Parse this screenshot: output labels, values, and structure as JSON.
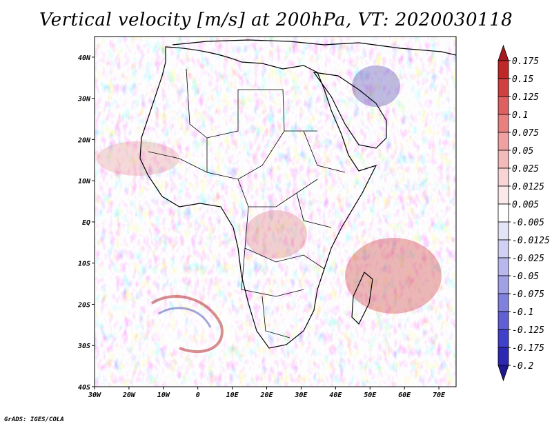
{
  "title": "Vertical velocity [m/s] at 200hPa, VT: 2020030118",
  "footer": "GrADS: IGES/COLA",
  "map": {
    "region": "Africa",
    "lon_range": [
      -30,
      75
    ],
    "lat_range": [
      -40,
      45
    ],
    "x_ticks": [
      "30W",
      "20W",
      "10W",
      "0",
      "10E",
      "20E",
      "30E",
      "40E",
      "50E",
      "60E",
      "70E"
    ],
    "y_ticks": [
      "40N",
      "30N",
      "20N",
      "10N",
      "EQ",
      "10S",
      "20S",
      "30S",
      "40S"
    ],
    "colors": {
      "up_dark": "#a01820",
      "up_light": "#f0b8b8",
      "neutral": "#ffffff",
      "down_light": "#c0c0f0",
      "down_dark": "#2018a0"
    }
  },
  "colorbar": {
    "labels": [
      "0.175",
      "0.15",
      "0.125",
      "0.1",
      "0.075",
      "0.05",
      "0.025",
      "0.0125",
      "0.005",
      "-0.005",
      "-0.0125",
      "-0.025",
      "-0.05",
      "-0.075",
      "-0.1",
      "-0.125",
      "-0.175",
      "-0.2"
    ],
    "colors": [
      "#a81820",
      "#c02828",
      "#d04040",
      "#de6060",
      "#e88080",
      "#f0a0a0",
      "#f4baba",
      "#f8d4d4",
      "#fbe8e8",
      "#ffffff",
      "#e4e4f8",
      "#d0d0f4",
      "#b8b8ee",
      "#a0a0e6",
      "#8080de",
      "#6060d4",
      "#4040c8",
      "#2c28b4",
      "#201890"
    ]
  }
}
